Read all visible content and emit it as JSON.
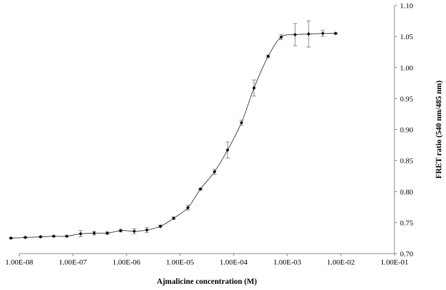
{
  "chart_data": {
    "type": "scatter",
    "xscale": "log",
    "xlabel": "Ajmalicine concentration (M)",
    "ylabel": "FRET ratio (540 nm/485 nm)",
    "xlim": [
      1e-08,
      0.1
    ],
    "ylim": [
      0.7,
      1.1
    ],
    "x_tick_labels": [
      "1.00E-08",
      "1.00E-07",
      "1.00E-06",
      "1.00E-05",
      "1.00E-04",
      "1.00E-03",
      "1.00E-02",
      "1.00E-01"
    ],
    "y_tick_labels": [
      "0.70",
      "0.75",
      "0.80",
      "0.85",
      "0.90",
      "0.95",
      "1.00",
      "1.05",
      "1.10"
    ],
    "y_axis_side": "right",
    "grid": false,
    "legend": "none",
    "series_color": "#000000",
    "curve_color": "#444444",
    "errorbar_color": "#888888",
    "series": [
      {
        "points": [
          {
            "x": 7e-09,
            "y": 0.725,
            "err": 0.001
          },
          {
            "x": 1.3e-08,
            "y": 0.726,
            "err": 0.001
          },
          {
            "x": 2.5e-08,
            "y": 0.727,
            "err": 0.001
          },
          {
            "x": 4.4e-08,
            "y": 0.728,
            "err": 0.001
          },
          {
            "x": 7.7e-08,
            "y": 0.728,
            "err": 0.001
          },
          {
            "x": 1.4e-07,
            "y": 0.732,
            "err": 0.005
          },
          {
            "x": 2.5e-07,
            "y": 0.733,
            "err": 0.003
          },
          {
            "x": 4.4e-07,
            "y": 0.733,
            "err": 0.002
          },
          {
            "x": 7.8e-07,
            "y": 0.737,
            "err": 0.002
          },
          {
            "x": 1.4e-06,
            "y": 0.736,
            "err": 0.004
          },
          {
            "x": 2.4e-06,
            "y": 0.738,
            "err": 0.004
          },
          {
            "x": 4.3e-06,
            "y": 0.744,
            "err": 0.002
          },
          {
            "x": 7.6e-06,
            "y": 0.757,
            "err": 0.002
          },
          {
            "x": 1.4e-05,
            "y": 0.774,
            "err": 0.004
          },
          {
            "x": 2.4e-05,
            "y": 0.804,
            "err": 0.001
          },
          {
            "x": 4.4e-05,
            "y": 0.832,
            "err": 0.004
          },
          {
            "x": 7.7e-05,
            "y": 0.867,
            "err": 0.013
          },
          {
            "x": 0.00014,
            "y": 0.911,
            "err": 0.004
          },
          {
            "x": 0.00024,
            "y": 0.967,
            "err": 0.013
          },
          {
            "x": 0.00044,
            "y": 1.018,
            "err": 0.002
          },
          {
            "x": 0.00077,
            "y": 1.049,
            "err": 0.004
          },
          {
            "x": 0.0014,
            "y": 1.053,
            "err": 0.018
          },
          {
            "x": 0.0025,
            "y": 1.054,
            "err": 0.021
          },
          {
            "x": 0.0046,
            "y": 1.055,
            "err": 0.005
          },
          {
            "x": 0.008,
            "y": 1.055,
            "err": 0.001
          }
        ]
      }
    ]
  }
}
